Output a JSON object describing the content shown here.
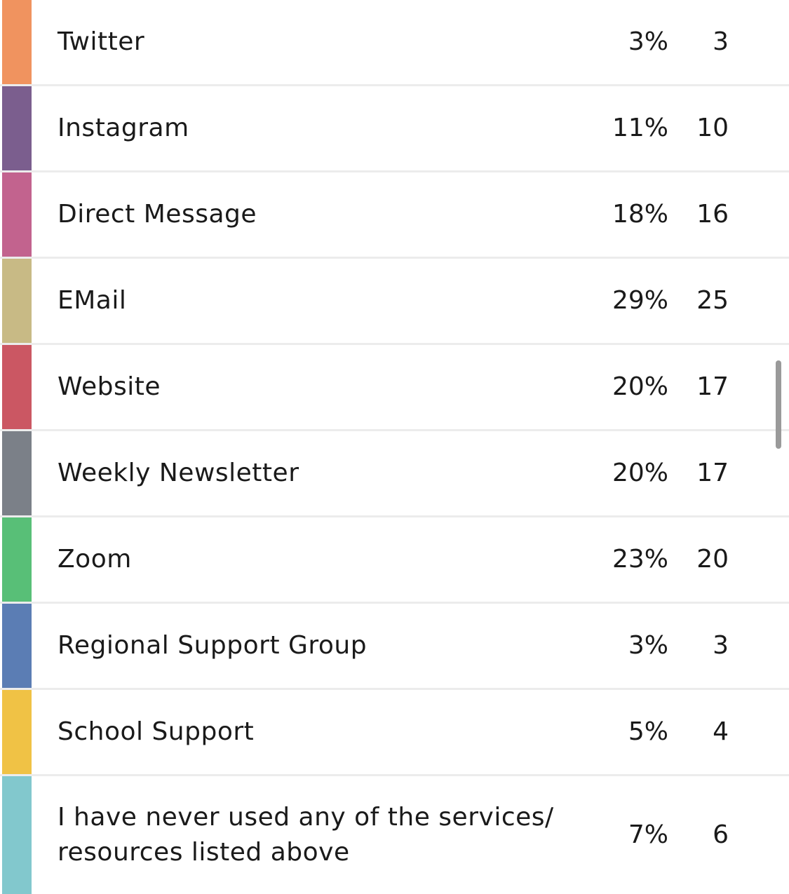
{
  "rows": [
    {
      "label": "Twitter",
      "percent": "3%",
      "count": "3",
      "color": "#F0935F"
    },
    {
      "label": "Instagram",
      "percent": "11%",
      "count": "10",
      "color": "#7B5E8E"
    },
    {
      "label": "Direct Message",
      "percent": "18%",
      "count": "16",
      "color": "#C2638E"
    },
    {
      "label": "EMail",
      "percent": "29%",
      "count": "25",
      "color": "#C8BA85"
    },
    {
      "label": "Website",
      "percent": "20%",
      "count": "17",
      "color": "#CB5763"
    },
    {
      "label": "Weekly Newsletter",
      "percent": "20%",
      "count": "17",
      "color": "#7B8088"
    },
    {
      "label": "Zoom",
      "percent": "23%",
      "count": "20",
      "color": "#58BF77"
    },
    {
      "label": "Regional Support Group",
      "percent": "3%",
      "count": "3",
      "color": "#5B7DB4"
    },
    {
      "label": "School Support",
      "percent": "5%",
      "count": "4",
      "color": "#F0C245"
    },
    {
      "label": "I have never used any of the services/ resources listed above",
      "percent": "7%",
      "count": "6",
      "color": "#82C8CD"
    }
  ]
}
